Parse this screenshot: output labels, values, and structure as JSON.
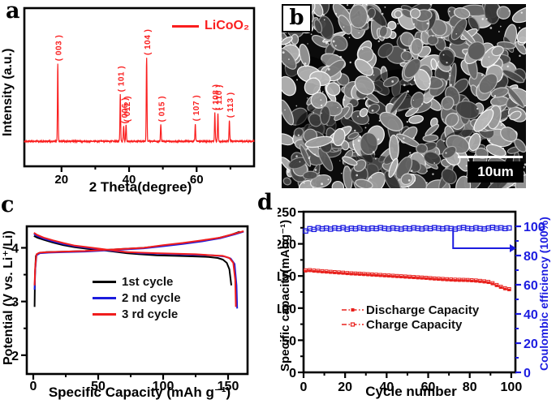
{
  "panels": {
    "a": {
      "letter": "a"
    },
    "b": {
      "letter": "b",
      "scale_bar": "10um"
    },
    "c": {
      "letter": "c"
    },
    "d": {
      "letter": "d"
    }
  },
  "chart_data": [
    {
      "id": "a",
      "type": "line",
      "xlabel": "2 Theta(degree)",
      "ylabel": "Intensity (a.u.)",
      "xlim": [
        9,
        77
      ],
      "xticks": [
        20,
        40,
        60
      ],
      "xticks_minor": [
        30,
        50,
        70
      ],
      "line_color": "#fa1e1e",
      "legend": [
        {
          "label": "LiCoO₂"
        }
      ],
      "peaks": [
        {
          "two_theta": 18.9,
          "height": 0.93,
          "label": "( 003 )"
        },
        {
          "two_theta": 37.4,
          "height": 0.56,
          "label": "( 101 )"
        },
        {
          "two_theta": 38.4,
          "height": 0.18,
          "label": "( 006 )"
        },
        {
          "two_theta": 39.1,
          "height": 0.2,
          "label": "( 012 )"
        },
        {
          "two_theta": 45.2,
          "height": 1.0,
          "label": "( 104 )"
        },
        {
          "two_theta": 49.4,
          "height": 0.2,
          "label": "( 015 )"
        },
        {
          "two_theta": 59.6,
          "height": 0.21,
          "label": "( 107 )"
        },
        {
          "two_theta": 65.4,
          "height": 0.34,
          "label": "( 108 )"
        },
        {
          "two_theta": 66.3,
          "height": 0.34,
          "label": "( 110 )"
        },
        {
          "two_theta": 69.7,
          "height": 0.25,
          "label": "( 113 )"
        }
      ]
    },
    {
      "id": "c",
      "type": "line",
      "xlabel": "Specific Capacity (mAh g⁻¹)",
      "ylabel": "Potential (V vs. Li⁺/Li)",
      "xlim": [
        -5,
        165
      ],
      "ylim": [
        1.65,
        4.4
      ],
      "xticks": [
        0,
        50,
        100,
        150
      ],
      "xticks_minor": [
        25,
        75,
        125
      ],
      "yticks": [
        2,
        3,
        4
      ],
      "yticks_minor": [
        2.5,
        3.5
      ],
      "series": [
        {
          "name": "1st cycle",
          "color": "#000000",
          "charge": [
            [
              1,
              2.9
            ],
            [
              1.3,
              3.5
            ],
            [
              2,
              3.85
            ],
            [
              4,
              3.9
            ],
            [
              10,
              3.92
            ],
            [
              25,
              3.93
            ],
            [
              40,
              3.94
            ],
            [
              55,
              3.96
            ],
            [
              70,
              3.98
            ],
            [
              85,
              4.0
            ],
            [
              100,
              4.04
            ],
            [
              115,
              4.08
            ],
            [
              130,
              4.13
            ],
            [
              142,
              4.18
            ],
            [
              152,
              4.24
            ],
            [
              159,
              4.3
            ]
          ],
          "discharge": [
            [
              0.5,
              4.22
            ],
            [
              3,
              4.19
            ],
            [
              8,
              4.15
            ],
            [
              15,
              4.1
            ],
            [
              23,
              4.05
            ],
            [
              32,
              4.01
            ],
            [
              42,
              3.98
            ],
            [
              52,
              3.96
            ],
            [
              62,
              3.93
            ],
            [
              72,
              3.9
            ],
            [
              82,
              3.88
            ],
            [
              95,
              3.86
            ],
            [
              110,
              3.85
            ],
            [
              125,
              3.84
            ],
            [
              135,
              3.83
            ],
            [
              142,
              3.81
            ],
            [
              146,
              3.78
            ],
            [
              149,
              3.72
            ],
            [
              151,
              3.6
            ],
            [
              152.5,
              3.3
            ]
          ]
        },
        {
          "name": "2 nd cycle",
          "color": "#1c1cdd",
          "charge": [
            [
              1,
              3.22
            ],
            [
              1.5,
              3.6
            ],
            [
              2.5,
              3.86
            ],
            [
              5,
              3.9
            ],
            [
              12,
              3.91
            ],
            [
              25,
              3.92
            ],
            [
              40,
              3.93
            ],
            [
              55,
              3.95
            ],
            [
              70,
              3.97
            ],
            [
              85,
              3.99
            ],
            [
              100,
              4.03
            ],
            [
              115,
              4.07
            ],
            [
              130,
              4.12
            ],
            [
              144,
              4.18
            ],
            [
              155,
              4.25
            ],
            [
              162,
              4.3
            ]
          ],
          "discharge": [
            [
              0.5,
              4.26
            ],
            [
              3,
              4.22
            ],
            [
              8,
              4.17
            ],
            [
              15,
              4.12
            ],
            [
              23,
              4.07
            ],
            [
              32,
              4.03
            ],
            [
              42,
              4.0
            ],
            [
              52,
              3.97
            ],
            [
              62,
              3.94
            ],
            [
              72,
              3.92
            ],
            [
              82,
              3.9
            ],
            [
              95,
              3.89
            ],
            [
              110,
              3.88
            ],
            [
              125,
              3.87
            ],
            [
              138,
              3.86
            ],
            [
              147,
              3.84
            ],
            [
              152,
              3.8
            ],
            [
              155,
              3.7
            ],
            [
              156.5,
              3.3
            ],
            [
              157,
              2.87
            ]
          ]
        },
        {
          "name": "3 rd cycle",
          "color": "#f01d1d",
          "charge": [
            [
              1,
              3.3
            ],
            [
              1.5,
              3.65
            ],
            [
              2.5,
              3.88
            ],
            [
              5,
              3.91
            ],
            [
              12,
              3.92
            ],
            [
              25,
              3.93
            ],
            [
              40,
              3.94
            ],
            [
              55,
              3.96
            ],
            [
              70,
              3.98
            ],
            [
              85,
              4.0
            ],
            [
              100,
              4.05
            ],
            [
              115,
              4.09
            ],
            [
              130,
              4.14
            ],
            [
              144,
              4.19
            ],
            [
              156,
              4.27
            ],
            [
              162,
              4.31
            ]
          ],
          "discharge": [
            [
              0.5,
              4.28
            ],
            [
              3,
              4.24
            ],
            [
              8,
              4.19
            ],
            [
              15,
              4.14
            ],
            [
              23,
              4.09
            ],
            [
              32,
              4.04
            ],
            [
              42,
              4.01
            ],
            [
              52,
              3.98
            ],
            [
              62,
              3.95
            ],
            [
              72,
              3.92
            ],
            [
              82,
              3.91
            ],
            [
              95,
              3.9
            ],
            [
              110,
              3.89
            ],
            [
              125,
              3.88
            ],
            [
              138,
              3.86
            ],
            [
              146,
              3.85
            ],
            [
              151,
              3.81
            ],
            [
              154,
              3.72
            ],
            [
              155.5,
              3.4
            ],
            [
              156,
              2.9
            ]
          ]
        }
      ]
    },
    {
      "id": "d",
      "type": "scatter",
      "xlabel": "Cycle number",
      "ylabel_left": "Specific capacity(mAhg⁻¹)",
      "ylabel_right": "Coulombic efficiency (100%)",
      "xlim": [
        0,
        102
      ],
      "xticks": [
        0,
        20,
        40,
        60,
        80,
        100
      ],
      "xticks_minor": [
        10,
        30,
        50,
        70,
        90
      ],
      "ylim_left": [
        0,
        250
      ],
      "yticks_left": [
        0,
        50,
        100,
        150,
        200,
        250
      ],
      "yticks_minor_left": [
        25,
        75,
        125,
        175,
        225
      ],
      "ylim_right": [
        0,
        110
      ],
      "yticks_right": [
        0,
        20,
        40,
        60,
        80,
        100
      ],
      "yticks_minor_right": [
        10,
        30,
        50,
        70,
        90
      ],
      "series_color": "#e8201c",
      "right_color": "#1c1ce0",
      "legend": [
        {
          "label": "Discharge Capacity",
          "marker": "filled-square"
        },
        {
          "label": "Charge Capacity",
          "marker": "open-square"
        }
      ],
      "cycles": [
        1,
        3,
        5,
        7,
        9,
        11,
        13,
        15,
        17,
        19,
        21,
        23,
        25,
        27,
        29,
        31,
        33,
        35,
        37,
        39,
        41,
        43,
        45,
        47,
        49,
        51,
        53,
        55,
        57,
        59,
        61,
        63,
        65,
        67,
        69,
        71,
        73,
        75,
        77,
        79,
        81,
        83,
        85,
        87,
        89,
        91,
        93,
        95,
        97,
        99
      ],
      "discharge": [
        157.5,
        158,
        157.2,
        156.8,
        156.2,
        155.8,
        155.3,
        154.9,
        154.4,
        154,
        153.4,
        153,
        152.7,
        152.4,
        152,
        151.6,
        151.2,
        150.8,
        150.4,
        150,
        149.6,
        149.2,
        148.8,
        148.4,
        148,
        147.6,
        147.2,
        146.8,
        146.4,
        146,
        145.5,
        145,
        144.6,
        144.2,
        143.8,
        143.4,
        143.1,
        142.9,
        142.8,
        142.6,
        142.2,
        141.8,
        141.2,
        140.5,
        139.6,
        137.6,
        134.8,
        132,
        129.8,
        128.3
      ],
      "charge": [
        158.8,
        159.2,
        158.5,
        158,
        157.5,
        157,
        156.5,
        156.1,
        155.6,
        155.2,
        154.6,
        154.2,
        153.9,
        153.6,
        153.2,
        152.8,
        152.4,
        152,
        151.6,
        151.2,
        150.8,
        150.4,
        150,
        149.6,
        149.2,
        148.8,
        148.4,
        148,
        147.6,
        147.2,
        146.7,
        146.2,
        145.8,
        145.4,
        145,
        144.6,
        144.3,
        144.1,
        144,
        143.8,
        143.4,
        143,
        142.4,
        141.7,
        140.8,
        138.8,
        136,
        133.2,
        131,
        129.5
      ],
      "efficiency": [
        96.8,
        98.4,
        97.9,
        99,
        98.3,
        98.8,
        98.1,
        98.9,
        98.4,
        99.1,
        98,
        98.7,
        98.3,
        99,
        98.5,
        98.2,
        98.8,
        98.4,
        99.1,
        98.6,
        98.2,
        98.9,
        98.5,
        98.1,
        98.8,
        98.3,
        99,
        98.6,
        98.2,
        98.9,
        98.4,
        99.1,
        98.7,
        98.3,
        98.9,
        98.5,
        98.1,
        98.8,
        99.2,
        98.6,
        98.3,
        99,
        98.5,
        98.2,
        98.8,
        99.3,
        98.7,
        99,
        98.5,
        98.9
      ],
      "arrow": {
        "x": 72,
        "y_from": 99,
        "y_to": 85
      }
    }
  ]
}
